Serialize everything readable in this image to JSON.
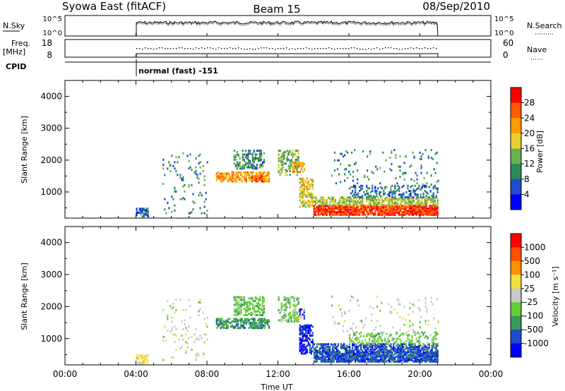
{
  "header": {
    "radar": "Syowa East (fitACF)",
    "beam": "Beam 15",
    "date": "08/Sep/2010"
  },
  "params": {
    "nsky_label": "N.Sky",
    "nsearch_label": "N.Search",
    "nsky_ticks": [
      "10^5",
      "10^0"
    ],
    "nsky_ticks_right": [
      "10^5",
      "10^0"
    ],
    "freq_label": "Freq.",
    "freq_unit": "[MHz]",
    "freq_ticks": [
      "18",
      "8"
    ],
    "nave_label": "Nave",
    "nave_ticks": [
      "60",
      "0"
    ],
    "cpid_label": "CPID",
    "cpid_value": "normal (fast) -151"
  },
  "chart_data": [
    {
      "type": "heatmap",
      "name": "power-panel",
      "ylabel": "Slant Range [km]",
      "y_ticks": [
        "1000",
        "2000",
        "3000",
        "4000"
      ],
      "yticks": [
        1000,
        2000,
        3000,
        4000
      ],
      "ylim": [
        180,
        4500
      ],
      "xlim": [
        0,
        24
      ],
      "data_start": 4.0,
      "data_end": 21.0,
      "colorbar": {
        "label": "Power [dB]",
        "tick_labels": [
          "4",
          "8",
          "12",
          "16",
          "20",
          "24",
          "28"
        ],
        "colors": [
          "#0000ff",
          "#1f4cc8",
          "#2e8b57",
          "#6ab04c",
          "#e6d030",
          "#ff9a00",
          "#ff5a00",
          "#ff0000"
        ]
      }
    },
    {
      "type": "heatmap",
      "name": "velocity-panel",
      "ylabel": "Slant Range [km]",
      "y_ticks": [
        "1000",
        "2000",
        "3000",
        "4000"
      ],
      "yticks": [
        1000,
        2000,
        3000,
        4000
      ],
      "ylim": [
        180,
        4500
      ],
      "xlim": [
        0,
        24
      ],
      "colorbar": {
        "label": "Velocity [m s⁻¹]",
        "tick_labels": [
          "1000",
          "500",
          "100",
          "25",
          "-25",
          "-100",
          "-500",
          "-1000"
        ],
        "colors": [
          "#0000ff",
          "#1f4cc8",
          "#3a9a5a",
          "#66cc33",
          "#c8c8c8",
          "#f0e040",
          "#ff9000",
          "#ff5000",
          "#ff0000"
        ]
      }
    }
  ],
  "time_axis": {
    "label": "Time UT",
    "ticks": [
      "00:00",
      "04:00",
      "08:00",
      "12:00",
      "16:00",
      "20:00",
      "00:00"
    ]
  }
}
